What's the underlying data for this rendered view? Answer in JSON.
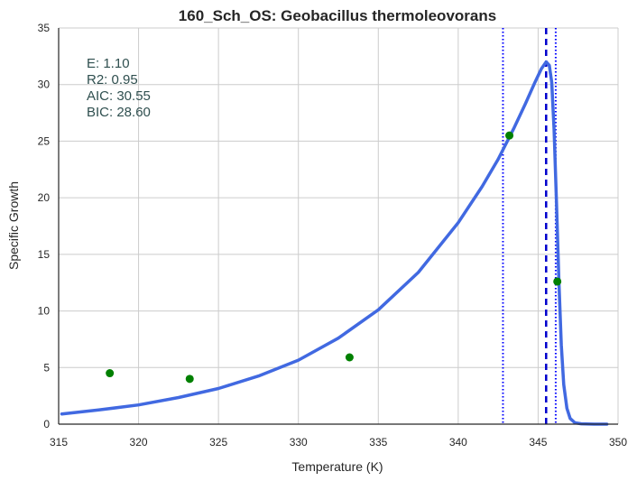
{
  "chart_data": {
    "type": "line",
    "title": "160_Sch_OS: Geobacillus thermoleovorans",
    "xlabel": "Temperature (K)",
    "ylabel": "Specific Growth",
    "xlim": [
      315,
      350
    ],
    "ylim": [
      0,
      35
    ],
    "xticks": [
      315,
      320,
      325,
      330,
      335,
      340,
      345,
      350
    ],
    "yticks": [
      0,
      5,
      10,
      15,
      20,
      25,
      30,
      35
    ],
    "grid": true,
    "annotation_lines": [
      "E:  1.10",
      "R2:  0.95",
      "AIC: 30.55",
      "BIC: 28.60"
    ],
    "points": {
      "color": "#008000",
      "x": [
        318.2,
        323.2,
        333.2,
        343.2,
        346.2
      ],
      "y": [
        4.5,
        4.0,
        5.9,
        25.5,
        12.6
      ]
    },
    "fit_curve": {
      "color": "#4169e1",
      "x": [
        315.2,
        317.5,
        320.0,
        322.5,
        325.0,
        327.5,
        330.0,
        332.5,
        335.0,
        337.5,
        340.0,
        341.5,
        342.5,
        343.5,
        344.2,
        344.8,
        345.2,
        345.5,
        345.7,
        345.85,
        346.0,
        346.15,
        346.3,
        346.45,
        346.6,
        346.8,
        347.0,
        347.3,
        347.7,
        348.5,
        349.3
      ],
      "y": [
        0.9,
        1.25,
        1.7,
        2.35,
        3.15,
        4.25,
        5.65,
        7.6,
        10.1,
        13.4,
        17.8,
        21.0,
        23.4,
        26.2,
        28.3,
        30.2,
        31.4,
        32.0,
        31.7,
        30.2,
        26.0,
        19.5,
        12.5,
        7.0,
        3.5,
        1.4,
        0.5,
        0.12,
        0.03,
        0.0,
        0.0
      ]
    },
    "vlines": [
      {
        "x": 342.8,
        "style": "dotted",
        "color": "#0000ff"
      },
      {
        "x": 345.5,
        "style": "dashed",
        "color": "#0000cd"
      },
      {
        "x": 346.1,
        "style": "dotted",
        "color": "#0000ff"
      }
    ]
  }
}
